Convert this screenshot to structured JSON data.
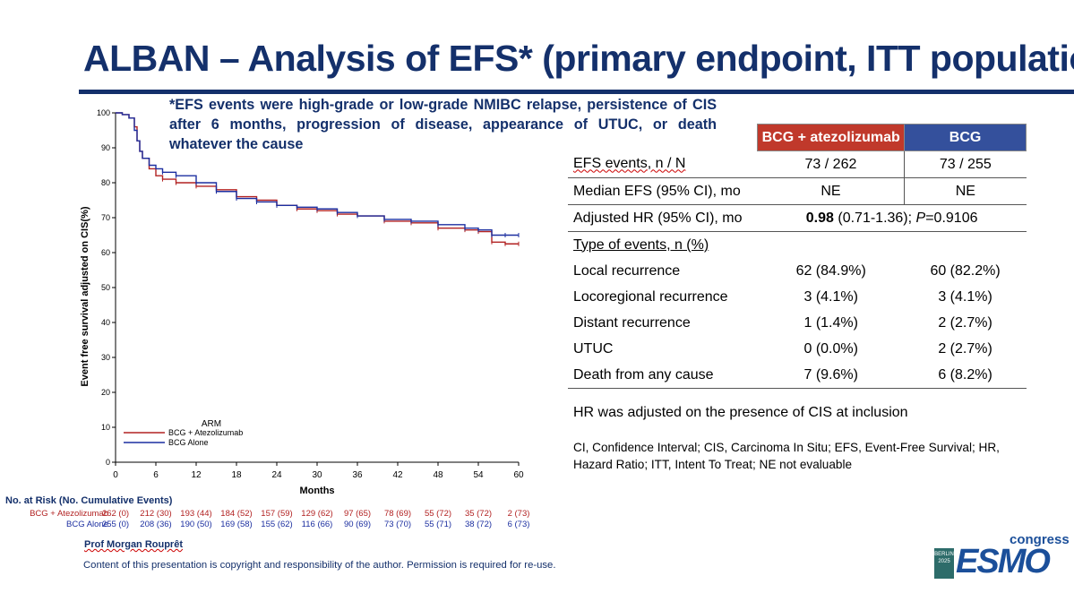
{
  "slide": {
    "title": "ALBAN – Analysis of EFS* (primary endpoint, ITT population)",
    "footnote": "*EFS events were high-grade or low-grade NMIBC relapse, persistence of CIS after 6 months, progression of disease, appearance of UTUC, or death whatever the cause",
    "presenter": "Prof Morgan Rouprêt",
    "copyright": "Content of this presentation is copyright and responsibility of the author. Permission is required for re-use.",
    "logo": {
      "berlin": "BERLIN",
      "year": "2025",
      "word": "ESMO",
      "congress": "congress"
    },
    "colors": {
      "title": "#14306b",
      "red": "#b22222",
      "blue": "#1c2fa0",
      "header_red": "#c0392b",
      "header_blue": "#34509c"
    }
  },
  "chart_data": {
    "type": "line",
    "title": "",
    "xlabel": "Months",
    "ylabel": "Event free survival adjusted on CIS(%)",
    "xlim": [
      0,
      60
    ],
    "ylim": [
      0,
      100
    ],
    "xticks": [
      0,
      6,
      12,
      18,
      24,
      30,
      36,
      42,
      48,
      54,
      60
    ],
    "yticks": [
      0,
      10,
      20,
      30,
      40,
      50,
      60,
      70,
      80,
      90,
      100
    ],
    "legend": {
      "title": "ARM",
      "position": "bottom-left"
    },
    "series": [
      {
        "name": "BCG + Atezolizumab",
        "color": "#b22222",
        "x": [
          0,
          1,
          2,
          2.8,
          3.2,
          3.6,
          4,
          5,
          6,
          7,
          9,
          12,
          15,
          18,
          21,
          24,
          27,
          30,
          33,
          36,
          40,
          44,
          48,
          52,
          54,
          56,
          58,
          60
        ],
        "y": [
          100,
          99.5,
          98.5,
          96,
          92,
          89,
          87,
          84,
          82,
          81,
          80,
          79,
          78,
          76,
          75,
          73.5,
          72.5,
          72,
          71,
          70.5,
          69,
          68.5,
          67,
          66.5,
          66,
          63,
          62.5,
          62.5
        ]
      },
      {
        "name": "BCG Alone",
        "color": "#1c2fa0",
        "x": [
          0,
          1,
          2,
          2.8,
          3.2,
          3.6,
          4,
          5,
          6,
          7,
          9,
          12,
          15,
          18,
          21,
          24,
          27,
          30,
          33,
          36,
          40,
          44,
          48,
          52,
          54,
          56,
          58,
          60
        ],
        "y": [
          100,
          99.5,
          98.5,
          95,
          92,
          89,
          87,
          85,
          84,
          83,
          82,
          80,
          77.5,
          75.5,
          74.5,
          73.5,
          73,
          72.5,
          71.5,
          70.5,
          69.5,
          69,
          68,
          67,
          66.5,
          65,
          65,
          65
        ]
      }
    ],
    "numbers_at_risk": {
      "heading": "No. at Risk (No. Cumulative Events)",
      "timepoints": [
        0,
        6,
        12,
        18,
        24,
        30,
        36,
        42,
        48,
        54,
        60
      ],
      "rows": [
        {
          "label": "BCG + Atezolizumab",
          "values": [
            "262 (0)",
            "212 (30)",
            "193 (44)",
            "184 (52)",
            "157 (59)",
            "129 (62)",
            "97 (65)",
            "78 (69)",
            "55 (72)",
            "35 (72)",
            "2 (73)"
          ]
        },
        {
          "label": "BCG Alone",
          "values": [
            "255 (0)",
            "208 (36)",
            "190 (50)",
            "169 (58)",
            "155 (62)",
            "116 (66)",
            "90 (69)",
            "73 (70)",
            "55 (71)",
            "38 (72)",
            "6 (73)"
          ]
        }
      ]
    }
  },
  "table": {
    "header": [
      "BCG + atezolizumab",
      "BCG"
    ],
    "efs_events": {
      "label": "EFS events, n / N",
      "a": "73 / 262",
      "b": "73 / 255"
    },
    "median": {
      "label": "Median EFS (95% CI), mo",
      "a": "NE",
      "b": "NE"
    },
    "hr": {
      "label": "Adjusted HR (95% CI), mo",
      "bold": "0.98",
      "ci": " (0.71-1.36); ",
      "p_label": "P",
      "p_value": "=0.9106"
    },
    "types_heading": "Type of events, n (%)",
    "rows": [
      {
        "label": "Local recurrence",
        "a": "62 (84.9%)",
        "b": "60 (82.2%)"
      },
      {
        "label": "Locoregional recurrence",
        "a": "3 (4.1%)",
        "b": "3 (4.1%)"
      },
      {
        "label": "Distant recurrence",
        "a": "1 (1.4%)",
        "b": "2 (2.7%)"
      },
      {
        "label": "UTUC",
        "a": "0 (0.0%)",
        "b": "2 (2.7%)"
      },
      {
        "label": "Death from any cause",
        "a": "7 (9.6%)",
        "b": "6 (8.2%)"
      }
    ],
    "hr_note": "HR was adjusted on the presence of CIS at inclusion",
    "abbreviations": "CI, Confidence Interval; CIS, Carcinoma In Situ; EFS, Event-Free Survival; HR, Hazard Ratio; ITT, Intent To Treat; NE not evaluable"
  }
}
